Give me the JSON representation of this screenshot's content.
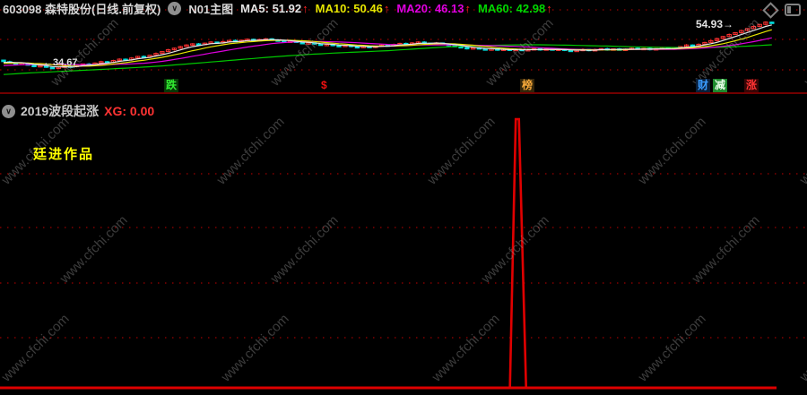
{
  "window": {
    "watermark": "www.cfchi.com"
  },
  "main_chart_header": {
    "stock_code": "603098",
    "stock_name": "森特股份",
    "period_label": "(日线.前复权)",
    "indicator_label": "N01主图",
    "ma_values": [
      {
        "label": "MA5:",
        "value": "51.92",
        "trend": "↑"
      },
      {
        "label": "MA10:",
        "value": "50.46",
        "trend": "↑"
      },
      {
        "label": "MA20:",
        "value": "46.13",
        "trend": "↑"
      },
      {
        "label": "MA60:",
        "value": "42.98",
        "trend": "↑"
      }
    ]
  },
  "quick_tags": {
    "die": "跌",
    "dollar": "$",
    "bang": "榜",
    "cai": "财",
    "jian": "减",
    "zhang": "涨"
  },
  "sub_chart_header": {
    "title": "2019波段起涨",
    "xg_text": "XG: 0.00",
    "signature": "廷进作品"
  },
  "chart_data": [
    {
      "type": "candlestick",
      "title": "603098 森特股份 日线 前复权",
      "low_marker": "←34.67",
      "high_marker": "54.93→",
      "price_low": 34.67,
      "price_high": 54.93,
      "price_range_approx": [
        33,
        57
      ],
      "up_color": "#ff3232",
      "down_color": "#00dcdc",
      "ma_lines": [
        {
          "name": "MA5",
          "period": 5,
          "color": "#e6e6e6",
          "header_value": 51.92
        },
        {
          "name": "MA10",
          "period": 10,
          "color": "#e6e600",
          "header_value": 50.46
        },
        {
          "name": "MA20",
          "period": 20,
          "color": "#dc00dc",
          "header_value": 46.13
        },
        {
          "name": "MA60",
          "period": 60,
          "color": "#00c800",
          "header_value": 42.98
        }
      ],
      "closes": [
        37.6,
        37.1,
        36.5,
        36.9,
        36.0,
        35.5,
        35.9,
        35.1,
        34.8,
        35.2,
        35.7,
        35.4,
        36.1,
        36.6,
        36.3,
        37.0,
        37.6,
        37.3,
        38.1,
        38.7,
        38.4,
        39.2,
        39.9,
        39.6,
        40.4,
        41.2,
        42.0,
        42.8,
        43.5,
        44.2,
        44.9,
        45.4,
        45.0,
        45.7,
        46.2,
        45.8,
        46.4,
        46.9,
        46.5,
        47.0,
        47.4,
        46.9,
        47.3,
        47.6,
        47.1,
        46.7,
        46.2,
        46.6,
        46.0,
        45.5,
        45.9,
        45.3,
        44.8,
        45.2,
        44.7,
        44.3,
        44.8,
        44.2,
        43.8,
        44.3,
        43.9,
        44.4,
        44.9,
        44.5,
        45.1,
        45.6,
        45.2,
        45.8,
        46.2,
        45.7,
        45.3,
        45.8,
        45.2,
        44.7,
        44.2,
        43.8,
        43.3,
        43.7,
        43.2,
        42.8,
        43.2,
        42.7,
        43.1,
        42.6,
        43.0,
        42.5,
        42.9,
        43.3,
        42.8,
        43.2,
        42.7,
        43.1,
        42.6,
        42.2,
        42.6,
        43.0,
        42.5,
        42.9,
        43.3,
        42.8,
        43.2,
        42.7,
        43.1,
        43.5,
        43.0,
        43.4,
        42.9,
        43.3,
        43.7,
        43.2,
        43.6,
        44.2,
        44.9,
        44.4,
        45.2,
        46.0,
        46.8,
        47.7,
        48.6,
        49.5,
        50.3,
        51.2,
        52.1,
        53.0,
        53.9,
        54.9,
        54.5
      ]
    },
    {
      "type": "line",
      "name": "2019波段起涨 XG",
      "displayed_value": "0.00",
      "color": "#e00000",
      "description": "flat at zero across all bars with a single narrow spike",
      "n_bars": 127,
      "spike_bar_index": 84
    }
  ]
}
